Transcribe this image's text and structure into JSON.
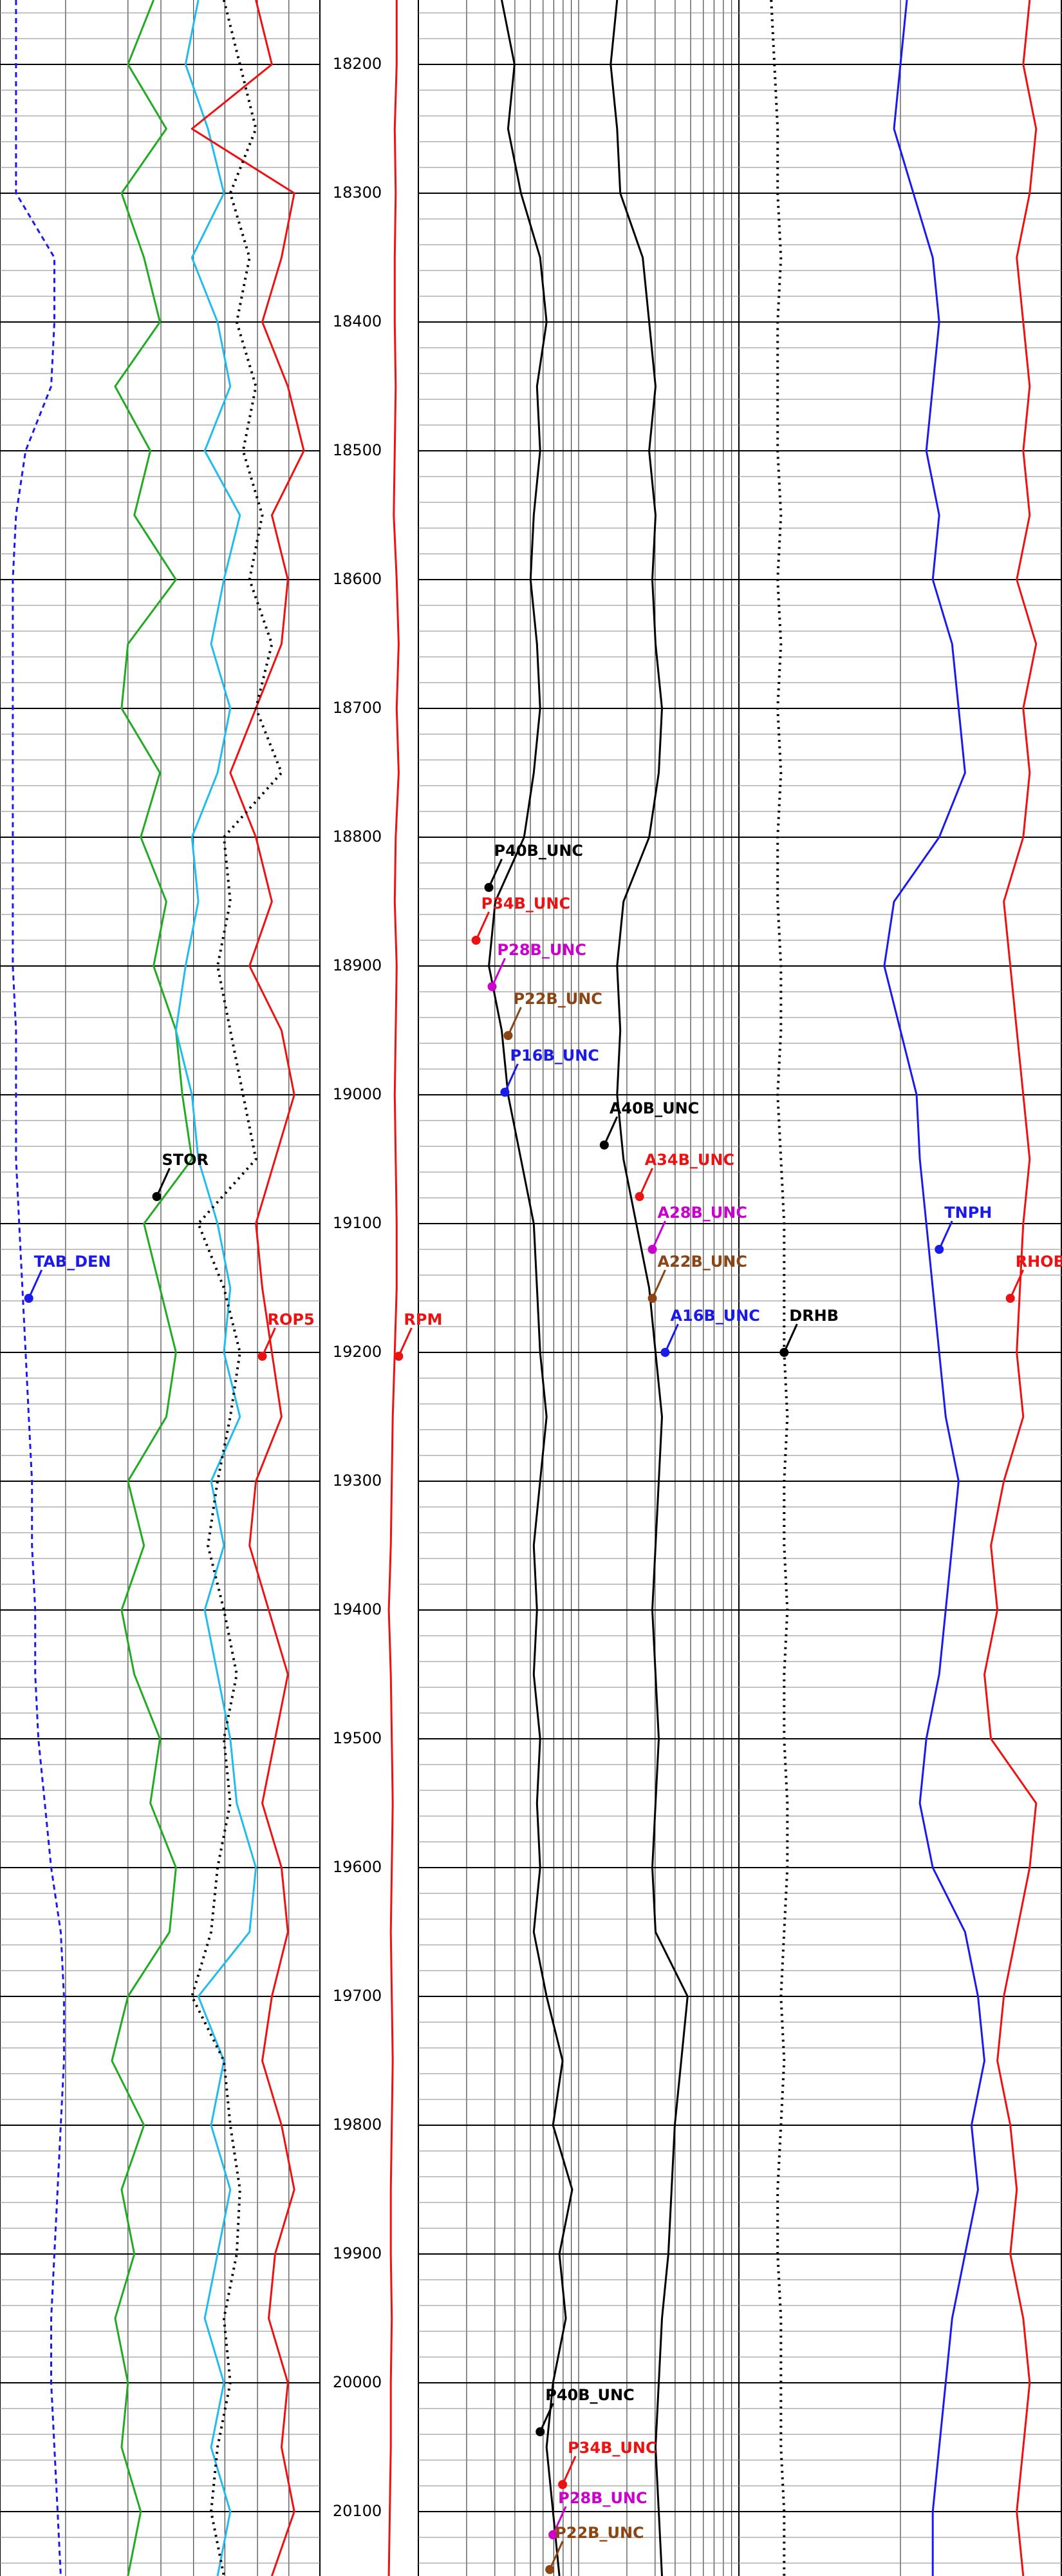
{
  "chart_data": {
    "type": "well-log",
    "ylim": [
      18150,
      20150
    ],
    "yticks": [
      18200,
      18300,
      18400,
      18500,
      18600,
      18700,
      18800,
      18900,
      19000,
      19100,
      19200,
      19300,
      19400,
      19500,
      19600,
      19700,
      19800,
      19900,
      20000,
      20100
    ],
    "depth": [
      18150,
      18200,
      18250,
      18300,
      18350,
      18400,
      18450,
      18500,
      18550,
      18600,
      18650,
      18700,
      18750,
      18800,
      18850,
      18900,
      18950,
      19000,
      19050,
      19100,
      19150,
      19200,
      19250,
      19300,
      19350,
      19400,
      19450,
      19500,
      19550,
      19600,
      19650,
      19700,
      19750,
      19800,
      19850,
      19900,
      19950,
      20000,
      20050,
      20100,
      20150
    ],
    "tracks": [
      {
        "xlim": [
          0,
          100
        ],
        "series": [
          {
            "color": "#1a1aee",
            "style": "dashed",
            "values": [
              5,
              5,
              5,
              5,
              17,
              17,
              16,
              8,
              5,
              4,
              4,
              4,
              4,
              4,
              4,
              4,
              5,
              5,
              5,
              6,
              7,
              8,
              9,
              10,
              10,
              11,
              11,
              12,
              14,
              16,
              19,
              20,
              20,
              19,
              18,
              17,
              16,
              16,
              17,
              18,
              19
            ]
          },
          {
            "color": "#22aa22",
            "style": "solid",
            "values": [
              48,
              40,
              52,
              38,
              45,
              50,
              36,
              47,
              42,
              55,
              40,
              38,
              50,
              44,
              52,
              48,
              55,
              57,
              60,
              45,
              50,
              55,
              52,
              40,
              45,
              38,
              42,
              50,
              47,
              55,
              53,
              40,
              35,
              45,
              38,
              42,
              36,
              40,
              38,
              44,
              40
            ]
          },
          {
            "color": "#22bbee",
            "style": "solid",
            "values": [
              62,
              58,
              65,
              70,
              60,
              68,
              72,
              64,
              75,
              70,
              66,
              72,
              68,
              60,
              62,
              58,
              55,
              60,
              62,
              68,
              72,
              70,
              75,
              66,
              70,
              64,
              68,
              72,
              74,
              80,
              78,
              62,
              70,
              66,
              72,
              68,
              64,
              70,
              66,
              72,
              68
            ]
          },
          {
            "color": "#ee1111",
            "style": "solid",
            "values": [
              80,
              85,
              60,
              92,
              88,
              82,
              90,
              95,
              85,
              90,
              88,
              80,
              72,
              80,
              85,
              78,
              88,
              92,
              86,
              80,
              82,
              85,
              88,
              80,
              78,
              84,
              90,
              86,
              82,
              88,
              90,
              85,
              82,
              88,
              92,
              86,
              84,
              90,
              88,
              92,
              85
            ]
          },
          {
            "color": "#000000",
            "style": "dotted",
            "values": [
              70,
              75,
              80,
              72,
              78,
              74,
              80,
              76,
              82,
              78,
              85,
              80,
              88,
              70,
              72,
              68,
              72,
              76,
              80,
              62,
              70,
              75,
              72,
              68,
              65,
              70,
              74,
              70,
              72,
              68,
              66,
              60,
              70,
              72,
              75,
              74,
              70,
              72,
              68,
              66,
              70
            ]
          }
        ],
        "annotations": [
          {
            "text": "TAB_DEN",
            "color": "#1a1aee",
            "at": [
              9,
              19158
            ]
          },
          {
            "text": "STOR",
            "color": "#000000",
            "at": [
              49,
              19079
            ]
          },
          {
            "text": "ROP5",
            "color": "#ee1111",
            "at": [
              82,
              19203
            ]
          }
        ]
      },
      {
        "xlim": [
          0,
          100
        ],
        "series": [
          {
            "color": "#ee1111",
            "style": "solid",
            "values": [
              78,
              78,
              76,
              77,
              76,
              76,
              77,
              76,
              75,
              78,
              80,
              78,
              80,
              77,
              76,
              78,
              77,
              76,
              77,
              78,
              78,
              76,
              74,
              73,
              72,
              70,
              72,
              73,
              74,
              73,
              72,
              73,
              74,
              73,
              72,
              72,
              73,
              72,
              72,
              71,
              70
            ]
          }
        ],
        "annotations": [
          {
            "text": "RPM",
            "color": "#ee1111",
            "at": [
              80,
              19203
            ]
          }
        ]
      },
      {
        "xlim": [
          0,
          100
        ],
        "series": [
          {
            "color": "#000000",
            "style": "solid",
            "values": [
              26,
              30,
              28,
              32,
              38,
              40,
              37,
              38,
              36,
              35,
              37,
              38,
              36,
              33,
              24,
              22,
              26,
              28,
              32,
              36,
              37,
              38,
              40,
              38,
              36,
              37,
              36,
              38,
              37,
              38,
              36,
              40,
              45,
              42,
              48,
              44,
              46,
              42,
              40,
              42,
              44
            ]
          },
          {
            "color": "#000000",
            "style": "solid",
            "values": [
              62,
              60,
              62,
              63,
              70,
              72,
              74,
              72,
              74,
              73,
              74,
              76,
              75,
              72,
              64,
              62,
              63,
              62,
              64,
              68,
              72,
              74,
              76,
              75,
              74,
              73,
              74,
              75,
              74,
              73,
              74,
              84,
              82,
              80,
              79,
              78,
              76,
              75,
              74,
              75,
              76
            ]
          }
        ],
        "annotations": [
          {
            "text": "P40B_UNC",
            "color": "#000000",
            "at": [
              22,
              18839
            ]
          },
          {
            "text": "P34B_UNC",
            "color": "#ee1111",
            "at": [
              18,
              18880
            ]
          },
          {
            "text": "P28B_UNC",
            "color": "#cc00cc",
            "at": [
              23,
              18916
            ]
          },
          {
            "text": "P22B_UNC",
            "color": "#8b4513",
            "at": [
              28,
              18954
            ]
          },
          {
            "text": "P16B_UNC",
            "color": "#1a1aee",
            "at": [
              27,
              18998
            ]
          },
          {
            "text": "A40B_UNC",
            "color": "#000000",
            "at": [
              58,
              19039
            ]
          },
          {
            "text": "A34B_UNC",
            "color": "#ee1111",
            "at": [
              69,
              19079
            ]
          },
          {
            "text": "A28B_UNC",
            "color": "#cc00cc",
            "at": [
              73,
              19120
            ]
          },
          {
            "text": "A22B_UNC",
            "color": "#8b4513",
            "at": [
              73,
              19158
            ]
          },
          {
            "text": "A16B_UNC",
            "color": "#1a1aee",
            "at": [
              77,
              19200
            ]
          },
          {
            "text": "P40B_UNC",
            "color": "#000000",
            "at": [
              38,
              20038
            ]
          },
          {
            "text": "P34B_UNC",
            "color": "#ee1111",
            "at": [
              45,
              20079
            ]
          },
          {
            "text": "P28B_UNC",
            "color": "#cc00cc",
            "at": [
              42,
              20118
            ]
          },
          {
            "text": "P22B_UNC",
            "color": "#8b4513",
            "at": [
              41,
              20145
            ]
          }
        ]
      },
      {
        "xlim": [
          0,
          100
        ],
        "series": [
          {
            "color": "#000000",
            "style": "dotted",
            "values": [
              10,
              11,
              12,
              12,
              13,
              12,
              12,
              12,
              13,
              12,
              13,
              12,
              13,
              12,
              12,
              13,
              13,
              12,
              13,
              14,
              14,
              14,
              15,
              14,
              14,
              15,
              14,
              14,
              15,
              15,
              14,
              13,
              14,
              13,
              12,
              12,
              13,
              13,
              13,
              14,
              14
            ]
          },
          {
            "color": "#1a1aee",
            "style": "solid",
            "values": [
              52,
              50,
              48,
              54,
              60,
              62,
              60,
              58,
              62,
              60,
              66,
              68,
              70,
              62,
              48,
              45,
              50,
              55,
              56,
              58,
              60,
              62,
              64,
              68,
              66,
              64,
              62,
              58,
              56,
              60,
              70,
              74,
              76,
              72,
              74,
              70,
              66,
              64,
              62,
              60,
              60
            ]
          },
          {
            "color": "#ee1111",
            "style": "solid",
            "values": [
              90,
              88,
              92,
              90,
              86,
              88,
              90,
              88,
              90,
              86,
              92,
              88,
              90,
              88,
              82,
              84,
              86,
              88,
              90,
              88,
              87,
              86,
              88,
              82,
              78,
              80,
              76,
              78,
              92,
              90,
              86,
              82,
              80,
              84,
              86,
              84,
              88,
              90,
              88,
              86,
              88
            ]
          }
        ],
        "annotations": [
          {
            "text": "DRHB",
            "color": "#000000",
            "at": [
              14,
              19200
            ]
          },
          {
            "text": "TNPH",
            "color": "#1a1aee",
            "at": [
              62,
              19120
            ]
          },
          {
            "text": "RHOB",
            "color": "#ee1111",
            "at": [
              84,
              19158
            ]
          }
        ]
      }
    ]
  }
}
